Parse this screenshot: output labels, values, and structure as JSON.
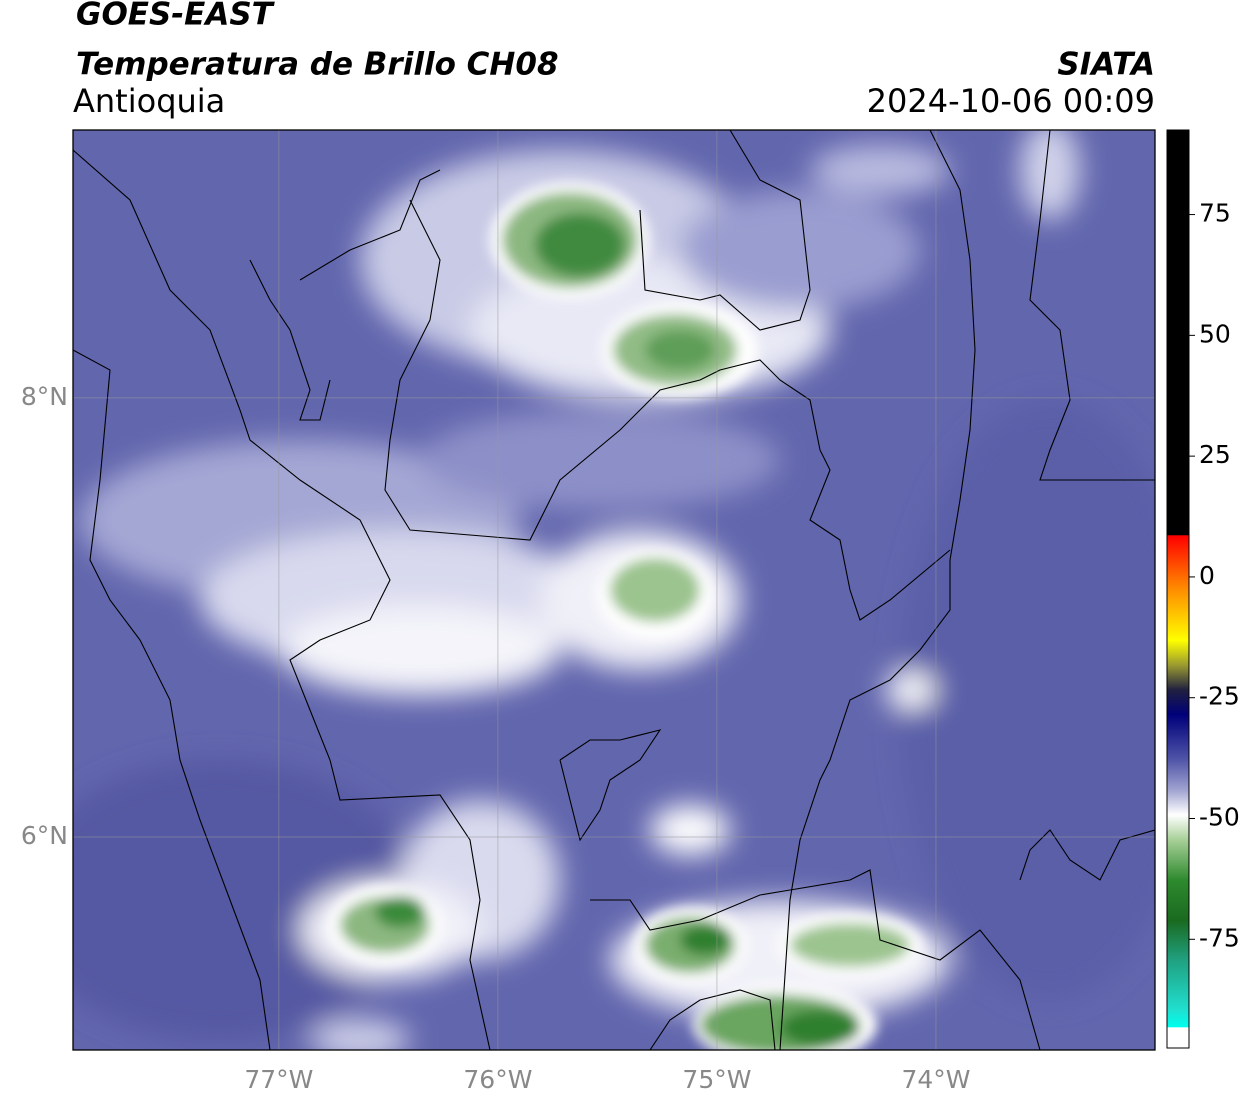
{
  "header": {
    "title": "GOES-EAST",
    "subtitle": "Temperatura de Brillo CH08",
    "region": "Antioquia",
    "source": "SIATA",
    "timestamp": "2024-10-06 00:09"
  },
  "map": {
    "xlim": [
      -77.94,
      -73.0
    ],
    "ylim": [
      5.03,
      9.22
    ],
    "xticks": [
      {
        "value": -77,
        "label": "77°W"
      },
      {
        "value": -76,
        "label": "76°W"
      },
      {
        "value": -75,
        "label": "75°W"
      },
      {
        "value": -74,
        "label": "74°W"
      }
    ],
    "yticks": [
      {
        "value": 6,
        "label": "6°N"
      },
      {
        "value": 8,
        "label": "8°N"
      }
    ],
    "grid": true
  },
  "colorbar": {
    "lim": [
      -97.5,
      92.5
    ],
    "ticks": [
      -75,
      -50,
      -25,
      0,
      25,
      50,
      75
    ]
  }
}
